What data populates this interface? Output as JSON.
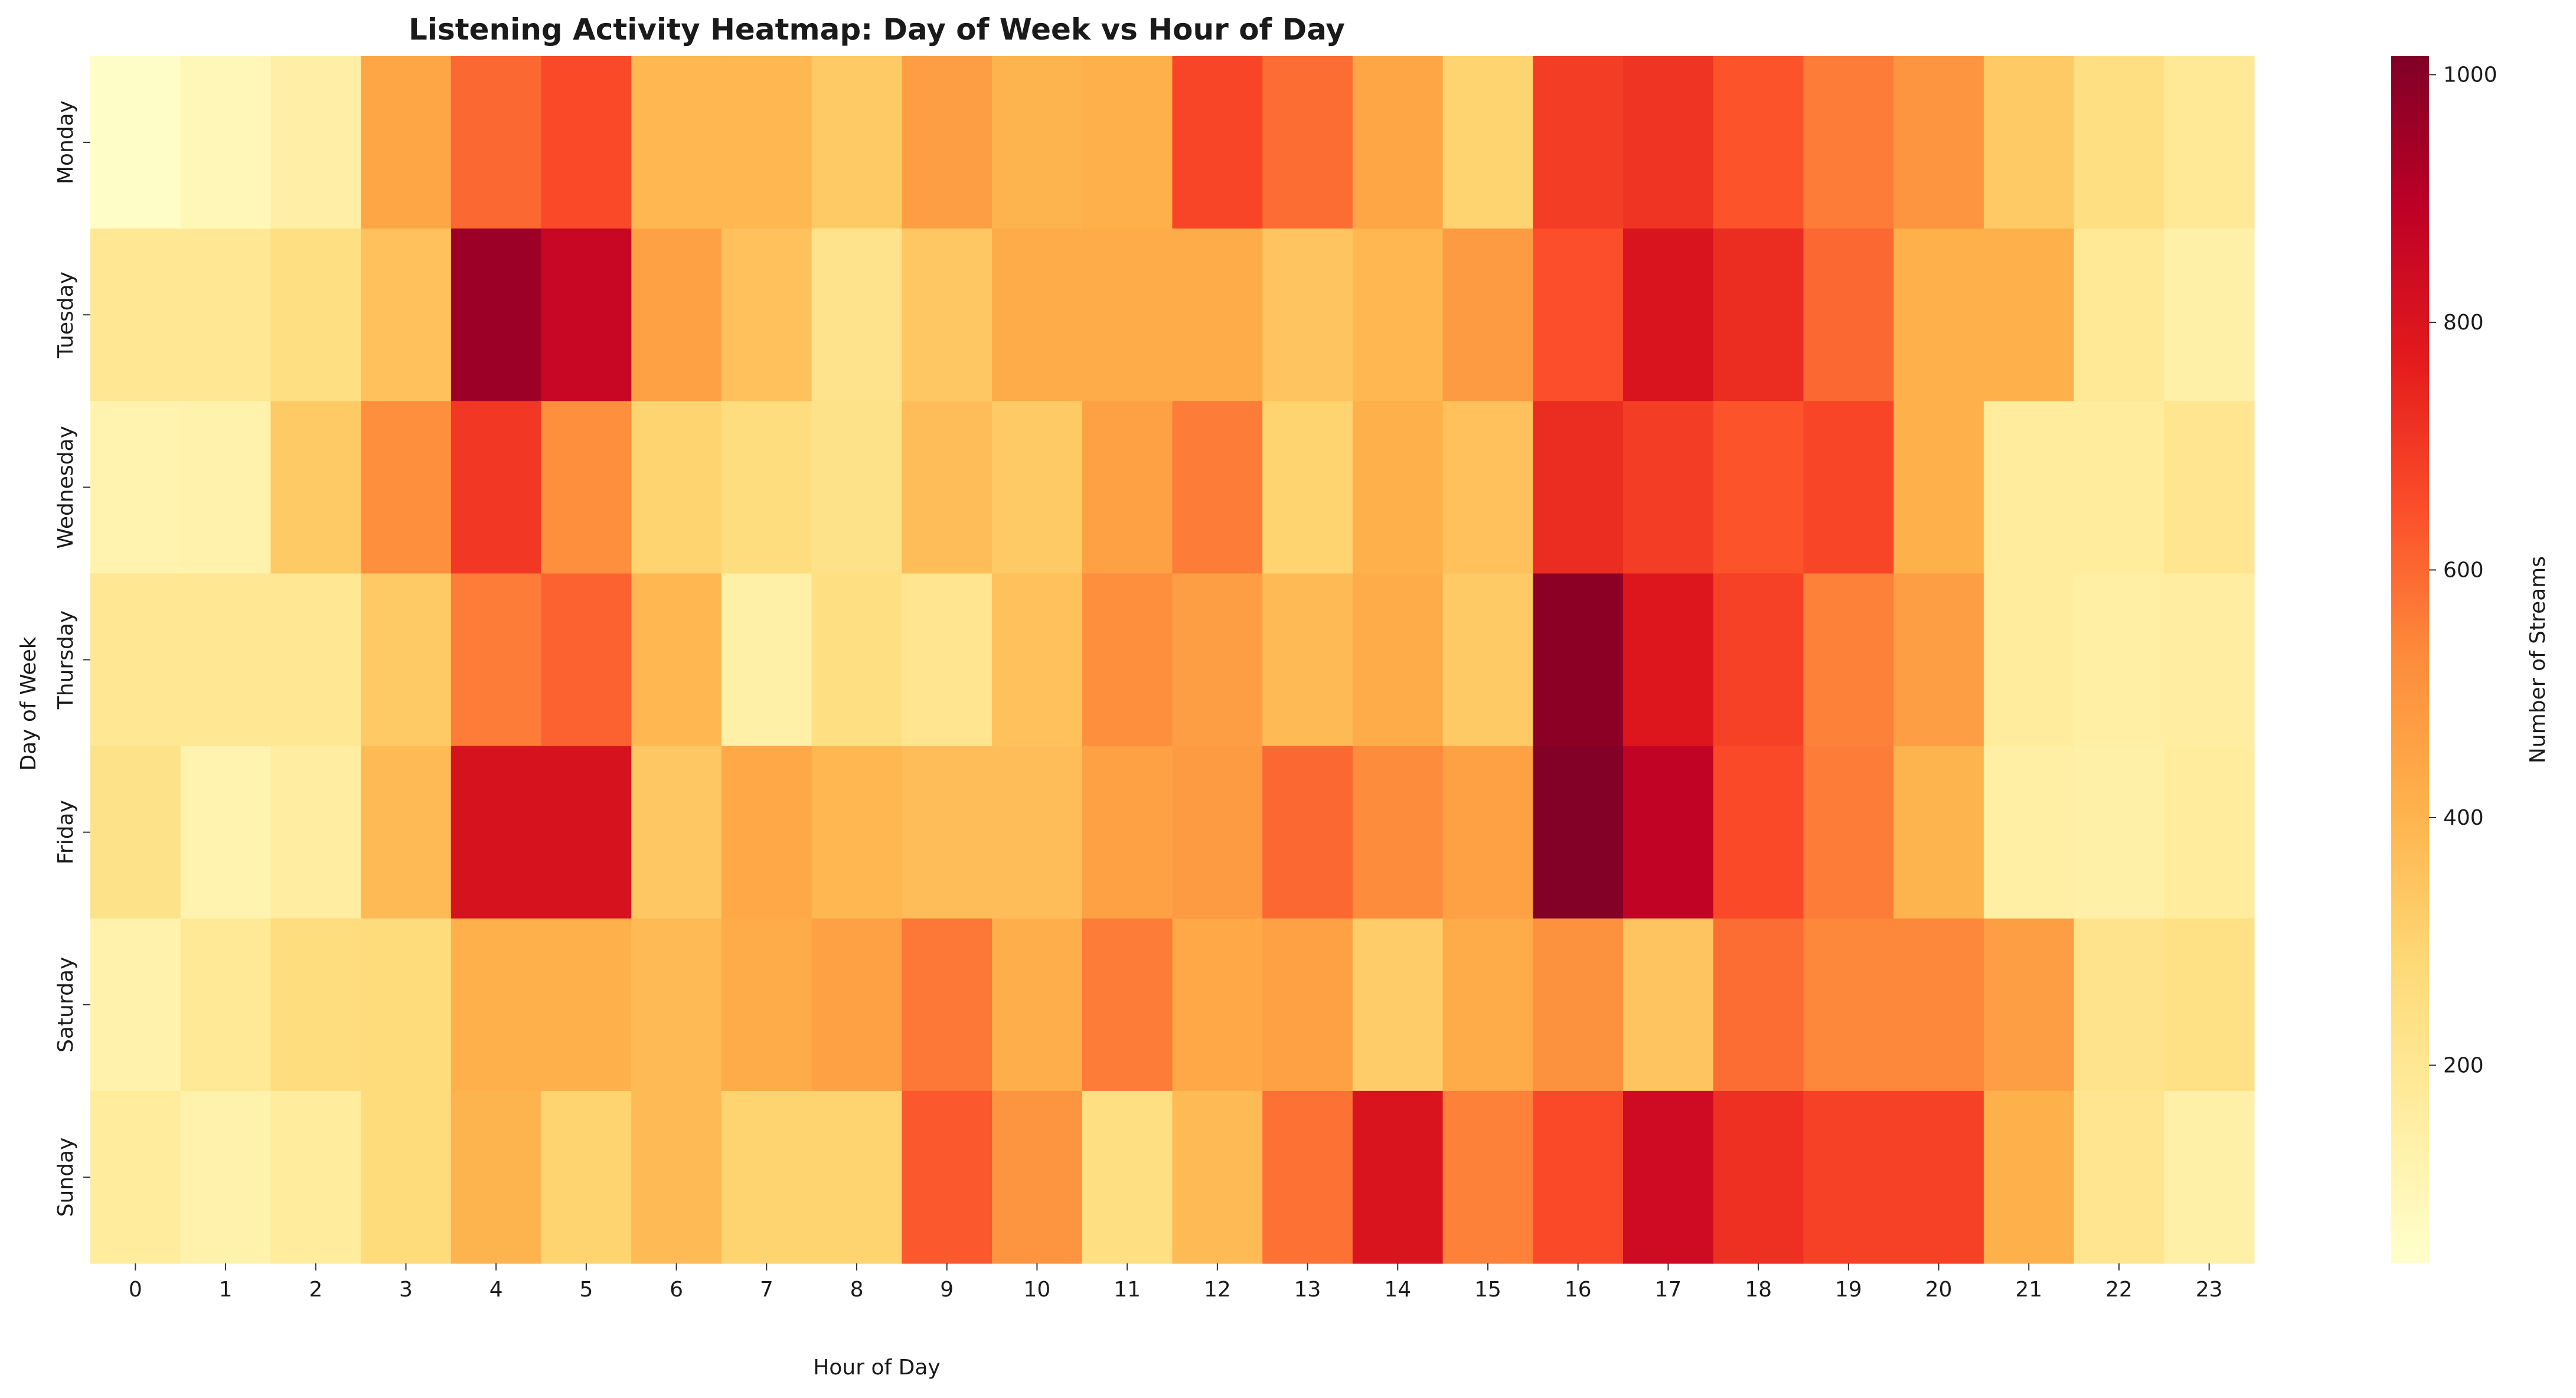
{
  "chart_data": {
    "type": "heatmap",
    "title": "Listening Activity Heatmap: Day of Week vs Hour of Day",
    "xlabel": "Hour of Day",
    "ylabel": "Day of Week",
    "x_categories": [
      "0",
      "1",
      "2",
      "3",
      "4",
      "5",
      "6",
      "7",
      "8",
      "9",
      "10",
      "11",
      "12",
      "13",
      "14",
      "15",
      "16",
      "17",
      "18",
      "19",
      "20",
      "21",
      "22",
      "23"
    ],
    "y_categories": [
      "Monday",
      "Tuesday",
      "Wednesday",
      "Thursday",
      "Friday",
      "Saturday",
      "Sunday"
    ],
    "values": [
      [
        55,
        95,
        145,
        450,
        600,
        660,
        390,
        390,
        330,
        470,
        400,
        410,
        670,
        590,
        450,
        300,
        690,
        710,
        640,
        560,
        500,
        330,
        250,
        190
      ],
      [
        200,
        200,
        250,
        360,
        960,
        860,
        460,
        360,
        220,
        340,
        430,
        430,
        430,
        350,
        390,
        480,
        650,
        800,
        730,
        600,
        410,
        410,
        190,
        140
      ],
      [
        120,
        130,
        330,
        520,
        700,
        520,
        300,
        260,
        230,
        370,
        330,
        460,
        560,
        300,
        410,
        360,
        730,
        690,
        640,
        670,
        410,
        170,
        170,
        210
      ],
      [
        200,
        200,
        200,
        330,
        560,
        610,
        390,
        140,
        250,
        210,
        360,
        520,
        470,
        380,
        430,
        330,
        990,
        790,
        680,
        550,
        470,
        170,
        150,
        160
      ],
      [
        230,
        120,
        160,
        380,
        810,
        810,
        340,
        440,
        390,
        370,
        370,
        460,
        480,
        600,
        530,
        460,
        1010,
        880,
        660,
        560,
        400,
        150,
        140,
        170
      ],
      [
        130,
        190,
        260,
        270,
        410,
        410,
        380,
        430,
        460,
        570,
        420,
        560,
        440,
        460,
        320,
        430,
        510,
        350,
        590,
        540,
        540,
        470,
        220,
        240
      ],
      [
        170,
        130,
        170,
        270,
        400,
        300,
        380,
        300,
        300,
        630,
        500,
        250,
        380,
        580,
        800,
        550,
        660,
        840,
        720,
        680,
        680,
        410,
        210,
        140
      ]
    ],
    "vmin": 40,
    "vmax": 1015,
    "colormap": "YlOrRd",
    "colorbar": {
      "label": "Number of Streams",
      "ticks": [
        200,
        400,
        600,
        800,
        1000
      ]
    },
    "grid": false
  }
}
